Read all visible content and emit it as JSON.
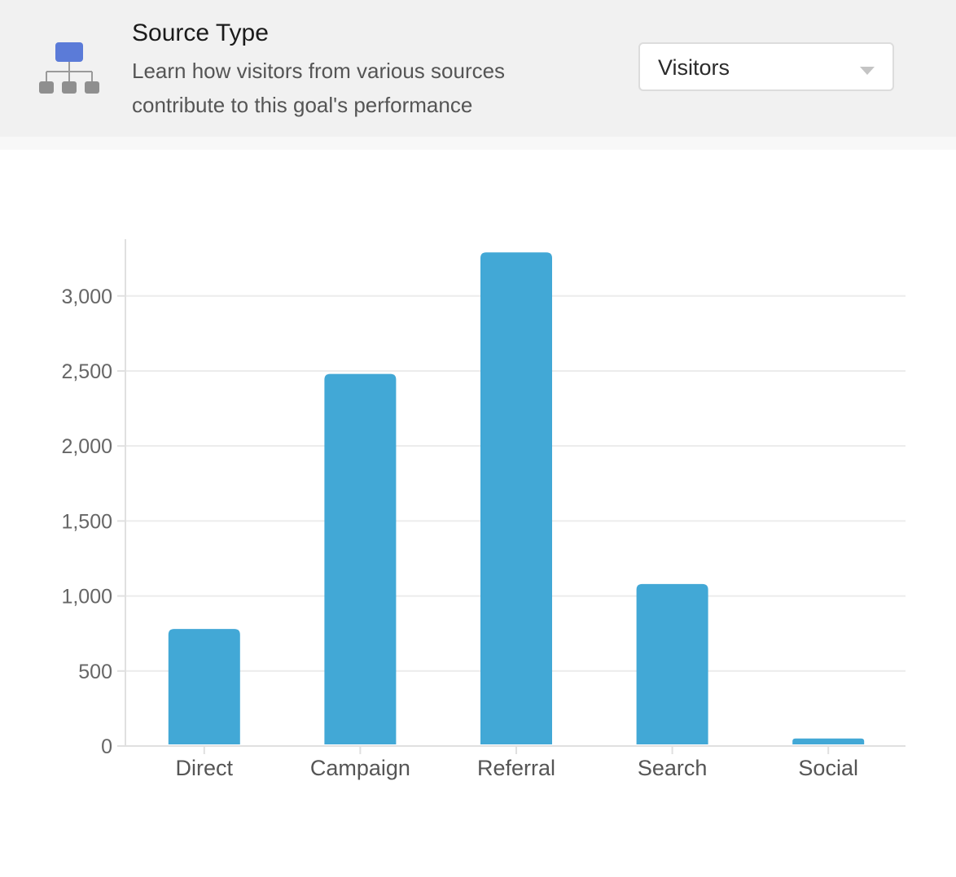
{
  "header": {
    "icon": "sitemap-icon",
    "title": "Source Type",
    "description": "Learn how visitors from various sources contribute to this goal's performance",
    "accent_color": "#5b7bd8"
  },
  "metric_select": {
    "selected": "Visitors",
    "icon": "chevron-down-icon"
  },
  "chart_data": {
    "type": "bar",
    "categories": [
      "Direct",
      "Campaign",
      "Referral",
      "Search",
      "Social"
    ],
    "values": [
      780,
      2480,
      3290,
      1080,
      50
    ],
    "ylim": [
      0,
      3400
    ],
    "yticks": [
      0,
      500,
      1000,
      1500,
      2000,
      2500,
      3000
    ],
    "ytick_labels": [
      "0",
      "500",
      "1,000",
      "1,500",
      "2,000",
      "2,500",
      "3,000"
    ],
    "grid": true,
    "bar_color": "#42a8d6"
  }
}
